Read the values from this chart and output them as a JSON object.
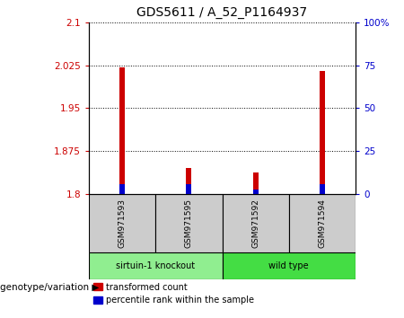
{
  "title": "GDS5611 / A_52_P1164937",
  "samples": [
    "GSM971593",
    "GSM971595",
    "GSM971592",
    "GSM971594"
  ],
  "groups": [
    {
      "label": "sirtuin-1 knockout",
      "indices": [
        0,
        1
      ],
      "color": "#90EE90"
    },
    {
      "label": "wild type",
      "indices": [
        2,
        3
      ],
      "color": "#44DD44"
    }
  ],
  "red_values": [
    2.021,
    1.845,
    1.838,
    2.015
  ],
  "blue_values": [
    1.817,
    1.817,
    1.808,
    1.817
  ],
  "ymin": 1.8,
  "ymax": 2.1,
  "yticks_left": [
    1.8,
    1.875,
    1.95,
    2.025,
    2.1
  ],
  "yticks_right": [
    0,
    25,
    50,
    75,
    100
  ],
  "ytick_labels_left": [
    "1.8",
    "1.875",
    "1.95",
    "2.025",
    "2.1"
  ],
  "ytick_labels_right": [
    "0",
    "25",
    "50",
    "75",
    "100%"
  ],
  "left_axis_color": "#CC0000",
  "right_axis_color": "#0000CC",
  "bar_width": 0.08,
  "bar_color_red": "#CC0000",
  "bar_color_blue": "#0000CC",
  "background_color": "#ffffff",
  "grid_color": "#000000",
  "xlabel_area_color": "#cccccc",
  "genotype_label": "genotype/variation",
  "legend_red": "transformed count",
  "legend_blue": "percentile rank within the sample"
}
